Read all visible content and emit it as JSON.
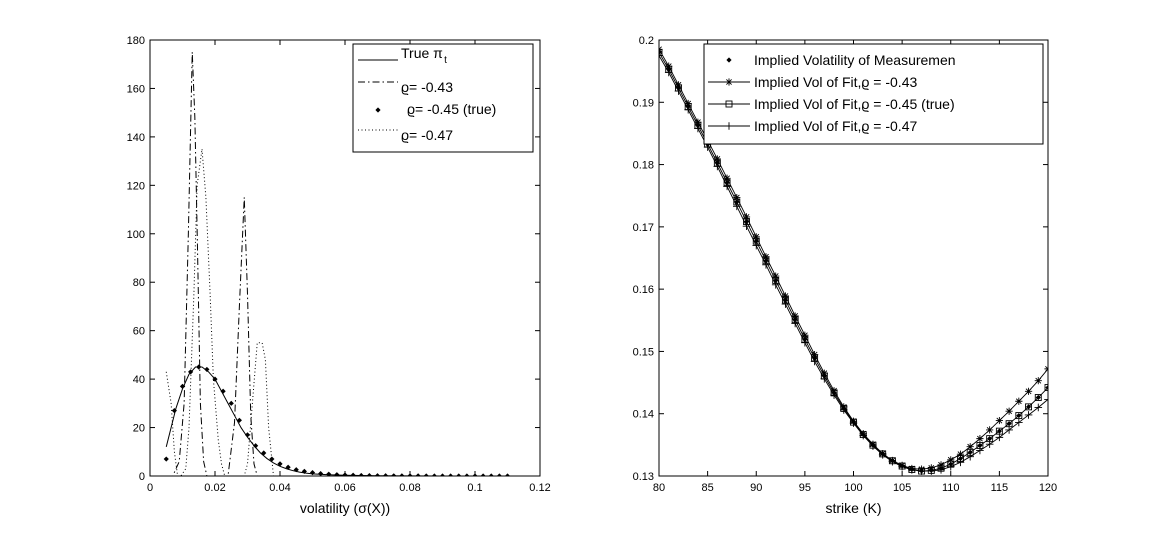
{
  "chart_data": [
    {
      "type": "line",
      "xlabel": "volatility (σ(X))",
      "ylabel": "",
      "xlim": [
        0,
        0.12
      ],
      "ylim": [
        0,
        180
      ],
      "xticks": [
        "0",
        "0.02",
        "0.04",
        "0.06",
        "0.08",
        "0.1",
        "0.12"
      ],
      "yticks": [
        "0",
        "20",
        "40",
        "60",
        "80",
        "100",
        "120",
        "140",
        "160",
        "180"
      ],
      "legend_position": "top-right",
      "legend": [
        "True π",
        "ϱ= -0.43",
        "ϱ= -0.45 (true)",
        "ϱ= -0.47"
      ],
      "legend_subscript": "t",
      "series": [
        {
          "name": "True π",
          "style": "solid",
          "x": [
            0.005,
            0.008,
            0.01,
            0.012,
            0.014,
            0.016,
            0.018,
            0.02,
            0.022,
            0.024,
            0.026,
            0.028,
            0.03,
            0.032,
            0.034,
            0.036,
            0.038,
            0.04,
            0.042,
            0.044,
            0.046,
            0.048,
            0.05,
            0.055,
            0.06,
            0.065,
            0.07,
            0.08,
            0.09,
            0.1,
            0.11
          ],
          "y": [
            12,
            28,
            36,
            42,
            45,
            45,
            43,
            40,
            35,
            30,
            25,
            20,
            16,
            12.5,
            9.5,
            7.2,
            5.4,
            4,
            3,
            2.2,
            1.6,
            1.2,
            0.9,
            0.5,
            0.3,
            0.2,
            0.1,
            0.05,
            0,
            0,
            0
          ]
        },
        {
          "name": "ϱ= -0.43",
          "style": "dashdot",
          "x": [
            0.005,
            0.007,
            0.009,
            0.0105,
            0.0118,
            0.013,
            0.0138,
            0.0146,
            0.0155,
            0.0165,
            0.0175,
            0.02,
            0.024,
            0.026,
            0.0275,
            0.029,
            0.03,
            0.031,
            0.032,
            0.033,
            0.04,
            0.06,
            0.11
          ],
          "y": [
            0,
            0,
            6,
            30,
            100,
            175,
            148,
            95,
            30,
            6,
            0,
            0,
            0,
            22,
            70,
            115,
            75,
            25,
            5,
            0,
            0,
            0,
            0
          ]
        },
        {
          "name": "ϱ= -0.45 (true)",
          "style": "markers",
          "x": [
            0.005,
            0.0075,
            0.01,
            0.0125,
            0.015,
            0.0175,
            0.02,
            0.0225,
            0.025,
            0.0275,
            0.03,
            0.0325,
            0.035,
            0.0375,
            0.04,
            0.0425,
            0.045,
            0.0475,
            0.05,
            0.0525,
            0.055,
            0.0575,
            0.06,
            0.0625,
            0.065,
            0.0675,
            0.07,
            0.0725,
            0.075,
            0.0775,
            0.08,
            0.0825,
            0.085,
            0.0875,
            0.09,
            0.0925,
            0.095,
            0.0975,
            0.1,
            0.1025,
            0.105,
            0.1075,
            0.11
          ],
          "y": [
            7,
            27,
            37,
            43,
            45,
            44,
            40,
            35,
            30,
            23,
            17,
            12.5,
            9.5,
            7,
            5,
            3.6,
            2.6,
            1.9,
            1.4,
            1,
            0.75,
            0.55,
            0.4,
            0.3,
            0.22,
            0.16,
            0.12,
            0.1,
            0.08,
            0.06,
            0.05,
            0.04,
            0.03,
            0.02,
            0.02,
            0.01,
            0.01,
            0,
            0,
            0,
            0,
            0,
            0
          ]
        },
        {
          "name": "ϱ= -0.47",
          "style": "dotted",
          "x": [
            0.005,
            0.0065,
            0.0075,
            0.0085,
            0.0095,
            0.011,
            0.012,
            0.0135,
            0.0145,
            0.016,
            0.0172,
            0.0185,
            0.0195,
            0.021,
            0.022,
            0.023,
            0.026,
            0.029,
            0.03,
            0.0315,
            0.033,
            0.0345,
            0.0355,
            0.0365,
            0.038,
            0.04,
            0.06,
            0.11
          ],
          "y": [
            43,
            30,
            10,
            0,
            0,
            3,
            20,
            75,
            120,
            135,
            115,
            75,
            40,
            15,
            5,
            0,
            0,
            0,
            5,
            30,
            55,
            55,
            48,
            20,
            0,
            0,
            0,
            0
          ]
        }
      ]
    },
    {
      "type": "line",
      "xlabel": "strike (K)",
      "ylabel": "",
      "xlim": [
        80,
        120
      ],
      "ylim": [
        0.13,
        0.2
      ],
      "xticks": [
        "80",
        "85",
        "90",
        "95",
        "100",
        "105",
        "110",
        "115",
        "120"
      ],
      "yticks": [
        "0.13",
        "0.14",
        "0.15",
        "0.16",
        "0.17",
        "0.18",
        "0.19",
        "0.2"
      ],
      "legend_position": "top-right",
      "legend": [
        "Implied Volatility of Measuremen",
        "Implied Vol of Fit,ϱ = -0.43",
        "Implied Vol of Fit,ϱ = -0.45 (true)",
        "Implied Vol of Fit,ϱ = -0.47"
      ],
      "series": [
        {
          "name": "Implied Volatility of Measuremen",
          "style": "markers",
          "x": [
            80,
            81,
            82,
            83,
            84,
            85,
            86,
            87,
            88,
            89,
            90,
            91,
            92,
            93,
            94,
            95,
            96,
            97,
            98,
            99,
            100,
            101,
            102,
            103,
            104,
            105,
            106,
            107,
            108,
            109,
            110,
            111,
            112,
            113,
            114,
            115,
            116,
            117,
            118,
            119,
            120
          ],
          "y": [
            0.198,
            0.1953,
            0.1923,
            0.1893,
            0.1863,
            0.1833,
            0.18025,
            0.1771,
            0.174,
            0.17085,
            0.1677,
            0.16455,
            0.1614,
            0.15825,
            0.1551,
            0.15195,
            0.14895,
            0.14605,
            0.14335,
            0.14085,
            0.13865,
            0.13665,
            0.13495,
            0.13355,
            0.13245,
            0.1316,
            0.13105,
            0.1308,
            0.1309,
            0.13125,
            0.1319,
            0.1328,
            0.1338,
            0.1349,
            0.136,
            0.1372,
            0.1384,
            0.1397,
            0.1411,
            0.1426,
            0.1442
          ]
        },
        {
          "name": "Implied Vol of Fit,ϱ = -0.43",
          "style": "star",
          "x": [
            80,
            81,
            82,
            83,
            84,
            85,
            86,
            87,
            88,
            89,
            90,
            91,
            92,
            93,
            94,
            95,
            96,
            97,
            98,
            99,
            100,
            101,
            102,
            103,
            104,
            105,
            106,
            107,
            108,
            109,
            110,
            111,
            112,
            113,
            114,
            115,
            116,
            117,
            118,
            119,
            120
          ],
          "y": [
            0.1985,
            0.1958,
            0.1928,
            0.1898,
            0.1868,
            0.1839,
            0.1809,
            0.1778,
            0.1747,
            0.1716,
            0.1684,
            0.1652,
            0.1621,
            0.1589,
            0.1557,
            0.1526,
            0.1495,
            0.1465,
            0.1437,
            0.1411,
            0.1388,
            0.1368,
            0.1351,
            0.1336,
            0.1325,
            0.1317,
            0.1312,
            0.1311,
            0.1313,
            0.1318,
            0.1326,
            0.1335,
            0.1347,
            0.136,
            0.1374,
            0.1389,
            0.1404,
            0.142,
            0.1436,
            0.1453,
            0.1472
          ]
        },
        {
          "name": "Implied Vol of Fit,ϱ = -0.45 (true)",
          "style": "square",
          "x": [
            80,
            81,
            82,
            83,
            84,
            85,
            86,
            87,
            88,
            89,
            90,
            91,
            92,
            93,
            94,
            95,
            96,
            97,
            98,
            99,
            100,
            101,
            102,
            103,
            104,
            105,
            106,
            107,
            108,
            109,
            110,
            111,
            112,
            113,
            114,
            115,
            116,
            117,
            118,
            119,
            120
          ],
          "y": [
            0.198,
            0.1953,
            0.1923,
            0.1893,
            0.1863,
            0.1833,
            0.18025,
            0.1771,
            0.174,
            0.17085,
            0.1677,
            0.16455,
            0.1614,
            0.15825,
            0.1551,
            0.15195,
            0.14895,
            0.14605,
            0.14335,
            0.14085,
            0.13865,
            0.13665,
            0.13495,
            0.13355,
            0.13245,
            0.1316,
            0.13105,
            0.1308,
            0.1309,
            0.13125,
            0.1319,
            0.1328,
            0.1338,
            0.1349,
            0.136,
            0.1372,
            0.1384,
            0.1397,
            0.1411,
            0.1426,
            0.1442
          ]
        },
        {
          "name": "Implied Vol of Fit,ϱ = -0.47",
          "style": "plus",
          "x": [
            80,
            81,
            82,
            83,
            84,
            85,
            86,
            87,
            88,
            89,
            90,
            91,
            92,
            93,
            94,
            95,
            96,
            97,
            98,
            99,
            100,
            101,
            102,
            103,
            104,
            105,
            106,
            107,
            108,
            109,
            110,
            111,
            112,
            113,
            114,
            115,
            116,
            117,
            118,
            119,
            120
          ],
          "y": [
            0.1975,
            0.1948,
            0.1918,
            0.1888,
            0.1858,
            0.1828,
            0.1797,
            0.1765,
            0.1733,
            0.1701,
            0.167,
            0.1639,
            0.1607,
            0.1576,
            0.1545,
            0.1514,
            0.1484,
            0.1456,
            0.143,
            0.1406,
            0.1385,
            0.1365,
            0.1348,
            0.1334,
            0.1323,
            0.1315,
            0.131,
            0.1308,
            0.1308,
            0.131,
            0.1315,
            0.1322,
            0.1331,
            0.1341,
            0.1351,
            0.1362,
            0.1374,
            0.1386,
            0.1398,
            0.141,
            0.1423
          ]
        }
      ]
    }
  ]
}
